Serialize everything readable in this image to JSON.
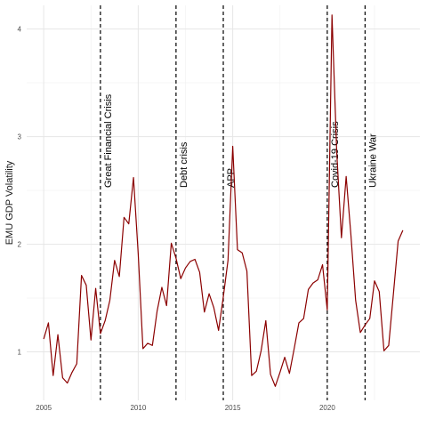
{
  "chart_data": {
    "type": "line",
    "title": "",
    "xlabel": "",
    "ylabel": "EMU GDP Volatility",
    "xlim": [
      2004.1,
      2024.9
    ],
    "ylim": [
      0.55,
      4.22
    ],
    "grid": true,
    "legend": "none",
    "x_ticks": [
      2005,
      2010,
      2015,
      2020
    ],
    "x_tick_labels": [
      "2005",
      "2010",
      "2015",
      "2020"
    ],
    "y_ticks": [
      1,
      2,
      3,
      4
    ],
    "y_tick_labels": [
      "1",
      "2",
      "3",
      "4"
    ],
    "series": [
      {
        "color": "#8b0000",
        "x": [
          2005.0,
          2005.25,
          2005.5,
          2005.75,
          2006.0,
          2006.25,
          2006.5,
          2006.75,
          2007.0,
          2007.25,
          2007.5,
          2007.75,
          2008.0,
          2008.25,
          2008.5,
          2008.75,
          2009.0,
          2009.25,
          2009.5,
          2009.75,
          2010.0,
          2010.25,
          2010.5,
          2010.75,
          2011.0,
          2011.25,
          2011.5,
          2011.75,
          2012.0,
          2012.25,
          2012.5,
          2012.75,
          2013.0,
          2013.25,
          2013.5,
          2013.75,
          2014.0,
          2014.25,
          2014.5,
          2014.75,
          2015.0,
          2015.25,
          2015.5,
          2015.75,
          2016.0,
          2016.25,
          2016.5,
          2016.75,
          2017.0,
          2017.25,
          2017.5,
          2017.75,
          2018.0,
          2018.25,
          2018.5,
          2018.75,
          2019.0,
          2019.25,
          2019.5,
          2019.75,
          2020.0,
          2020.25,
          2020.5,
          2020.75,
          2021.0,
          2021.25,
          2021.5,
          2021.75,
          2022.0,
          2022.25,
          2022.5,
          2022.75,
          2023.0,
          2023.25,
          2023.5,
          2023.75,
          2024.0
        ],
        "y": [
          1.12,
          1.27,
          0.78,
          1.16,
          0.76,
          0.71,
          0.81,
          0.89,
          1.71,
          1.62,
          1.11,
          1.59,
          1.17,
          1.29,
          1.48,
          1.85,
          1.7,
          2.25,
          2.19,
          2.62,
          1.91,
          1.03,
          1.08,
          1.06,
          1.38,
          1.6,
          1.43,
          2.01,
          1.87,
          1.68,
          1.78,
          1.84,
          1.86,
          1.74,
          1.37,
          1.54,
          1.41,
          1.2,
          1.51,
          1.85,
          2.91,
          1.95,
          1.92,
          1.75,
          0.78,
          0.82,
          1.01,
          1.29,
          0.79,
          0.68,
          0.81,
          0.95,
          0.8,
          1.03,
          1.27,
          1.31,
          1.58,
          1.64,
          1.67,
          1.81,
          1.39,
          4.13,
          2.86,
          2.06,
          2.63,
          2.09,
          1.48,
          1.18,
          1.25,
          1.31,
          1.66,
          1.56,
          1.01,
          1.06,
          1.54,
          2.03,
          2.13
        ]
      }
    ],
    "events": [
      {
        "x": 2008.0,
        "label": "Great Financial Crisis"
      },
      {
        "x": 2012.0,
        "label": "Debt crisis"
      },
      {
        "x": 2014.5,
        "label": "APP"
      },
      {
        "x": 2020.0,
        "label": "Covid-19 Crisis"
      },
      {
        "x": 2022.0,
        "label": "Ukraine War"
      }
    ]
  }
}
